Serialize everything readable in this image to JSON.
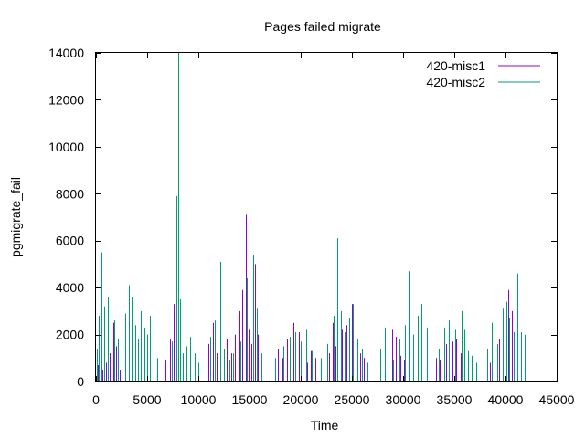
{
  "chart_data": {
    "type": "bar",
    "title": "Pages failed migrate",
    "xlabel": "Time",
    "ylabel": "pgmigrate_fail",
    "xlim": [
      0,
      45000
    ],
    "ylim": [
      0,
      14000
    ],
    "x_ticks": [
      "0",
      "5000",
      "10000",
      "15000",
      "20000",
      "25000",
      "30000",
      "35000",
      "40000",
      "45000"
    ],
    "y_ticks": [
      "0",
      "2000",
      "4000",
      "6000",
      "8000",
      "10000",
      "12000",
      "14000"
    ],
    "legend_position": "top-right",
    "grid": false,
    "series": [
      {
        "name": "420-misc1",
        "color": "#9400d3",
        "points": [
          [
            200,
            700
          ],
          [
            600,
            500
          ],
          [
            1000,
            800
          ],
          [
            1300,
            1200
          ],
          [
            1700,
            2500
          ],
          [
            2000,
            1500
          ],
          [
            2300,
            500
          ],
          [
            6800,
            900
          ],
          [
            7200,
            1800
          ],
          [
            7600,
            3300
          ],
          [
            8000,
            2900
          ],
          [
            11000,
            1600
          ],
          [
            11400,
            2500
          ],
          [
            11800,
            1200
          ],
          [
            12800,
            1800
          ],
          [
            13200,
            1200
          ],
          [
            13600,
            2000
          ],
          [
            14000,
            3000
          ],
          [
            14300,
            3900
          ],
          [
            14600,
            7100
          ],
          [
            14900,
            2200
          ],
          [
            15200,
            1600
          ],
          [
            15500,
            5000
          ],
          [
            15800,
            2000
          ],
          [
            17800,
            1400
          ],
          [
            18200,
            1000
          ],
          [
            18700,
            1800
          ],
          [
            19300,
            2500
          ],
          [
            19800,
            2100
          ],
          [
            20200,
            1400
          ],
          [
            20600,
            800
          ],
          [
            21000,
            1300
          ],
          [
            21400,
            1000
          ],
          [
            22800,
            1200
          ],
          [
            23100,
            2500
          ],
          [
            23400,
            1500
          ],
          [
            24000,
            2200
          ],
          [
            24500,
            2400
          ],
          [
            25000,
            3300
          ],
          [
            25400,
            1600
          ],
          [
            25800,
            1200
          ],
          [
            26200,
            1000
          ],
          [
            28500,
            1500
          ],
          [
            28900,
            2200
          ],
          [
            29300,
            1900
          ],
          [
            29700,
            1100
          ],
          [
            30100,
            900
          ],
          [
            33200,
            1000
          ],
          [
            33600,
            900
          ],
          [
            34200,
            1600
          ],
          [
            34800,
            1700
          ],
          [
            35200,
            1800
          ],
          [
            35600,
            1200
          ],
          [
            38500,
            800
          ],
          [
            38900,
            1500
          ],
          [
            39400,
            1800
          ],
          [
            39900,
            2400
          ],
          [
            40300,
            3900
          ],
          [
            40600,
            3000
          ],
          [
            41000,
            1000
          ]
        ]
      },
      {
        "name": "420-misc2",
        "color": "#009e73",
        "points": [
          [
            100,
            1400
          ],
          [
            300,
            2800
          ],
          [
            500,
            5500
          ],
          [
            800,
            3200
          ],
          [
            1200,
            3600
          ],
          [
            1500,
            5600
          ],
          [
            1800,
            2600
          ],
          [
            2100,
            1800
          ],
          [
            2500,
            1400
          ],
          [
            2900,
            2900
          ],
          [
            3200,
            4100
          ],
          [
            3500,
            3600
          ],
          [
            3800,
            2400
          ],
          [
            4100,
            1800
          ],
          [
            4400,
            3000
          ],
          [
            4700,
            2300
          ],
          [
            5000,
            2000
          ],
          [
            5300,
            2800
          ],
          [
            5600,
            1300
          ],
          [
            6000,
            1000
          ],
          [
            7400,
            1700
          ],
          [
            7700,
            2100
          ],
          [
            7900,
            7900
          ],
          [
            8000,
            14000
          ],
          [
            8200,
            3500
          ],
          [
            8500,
            1200
          ],
          [
            8800,
            1500
          ],
          [
            9200,
            1900
          ],
          [
            9600,
            1200
          ],
          [
            10000,
            800
          ],
          [
            11200,
            1900
          ],
          [
            11600,
            2600
          ],
          [
            12100,
            5100
          ],
          [
            12500,
            1400
          ],
          [
            13000,
            900
          ],
          [
            13400,
            1200
          ],
          [
            14100,
            1700
          ],
          [
            14700,
            4400
          ],
          [
            15000,
            2300
          ],
          [
            15400,
            5400
          ],
          [
            15700,
            3100
          ],
          [
            16200,
            1200
          ],
          [
            17500,
            1000
          ],
          [
            18300,
            1500
          ],
          [
            18900,
            1900
          ],
          [
            19500,
            2100
          ],
          [
            20000,
            1700
          ],
          [
            20500,
            2200
          ],
          [
            21100,
            1300
          ],
          [
            22000,
            1000
          ],
          [
            22600,
            1600
          ],
          [
            23200,
            2800
          ],
          [
            23600,
            6100
          ],
          [
            23900,
            3000
          ],
          [
            24300,
            2100
          ],
          [
            24700,
            2700
          ],
          [
            25100,
            3300
          ],
          [
            25500,
            1800
          ],
          [
            26000,
            1400
          ],
          [
            26500,
            800
          ],
          [
            27800,
            1400
          ],
          [
            28200,
            2300
          ],
          [
            29000,
            900
          ],
          [
            29600,
            1800
          ],
          [
            30200,
            2400
          ],
          [
            30600,
            4700
          ],
          [
            31000,
            2000
          ],
          [
            31400,
            2800
          ],
          [
            31800,
            3300
          ],
          [
            32300,
            2300
          ],
          [
            32700,
            1500
          ],
          [
            33500,
            1400
          ],
          [
            34000,
            2300
          ],
          [
            34500,
            2600
          ],
          [
            35100,
            2200
          ],
          [
            35700,
            3000
          ],
          [
            36000,
            2200
          ],
          [
            36300,
            1300
          ],
          [
            36700,
            1100
          ],
          [
            37100,
            800
          ],
          [
            38200,
            1400
          ],
          [
            38700,
            2500
          ],
          [
            39200,
            1600
          ],
          [
            39700,
            3100
          ],
          [
            40100,
            3400
          ],
          [
            40400,
            2700
          ],
          [
            40800,
            2100
          ],
          [
            41200,
            4600
          ],
          [
            41500,
            2100
          ],
          [
            41900,
            2000
          ]
        ]
      }
    ]
  }
}
